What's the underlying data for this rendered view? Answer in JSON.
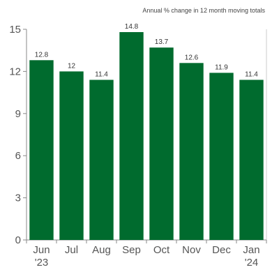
{
  "chart_data": {
    "type": "bar",
    "subtitle": "Annual % change in 12 month moving totals",
    "categories": [
      {
        "line1": "Jun",
        "line2": "'23"
      },
      {
        "line1": "Jul",
        "line2": ""
      },
      {
        "line1": "Aug",
        "line2": ""
      },
      {
        "line1": "Sep",
        "line2": ""
      },
      {
        "line1": "Oct",
        "line2": ""
      },
      {
        "line1": "Nov",
        "line2": ""
      },
      {
        "line1": "Dec",
        "line2": ""
      },
      {
        "line1": "Jan",
        "line2": "'24"
      }
    ],
    "values": [
      12.8,
      12,
      11.4,
      14.8,
      13.7,
      12.6,
      11.9,
      11.4
    ],
    "value_labels": [
      "12.8",
      "12",
      "11.4",
      "14.8",
      "13.7",
      "12.6",
      "11.9",
      "11.4"
    ],
    "ylim": [
      0,
      15
    ],
    "yticks": [
      0,
      3,
      6,
      9,
      12,
      15
    ],
    "grid": false,
    "xlabel": "",
    "ylabel": "",
    "colors": {
      "bar": "#006b2e",
      "axis": "#888888",
      "plot_border": "#cccccc"
    }
  }
}
